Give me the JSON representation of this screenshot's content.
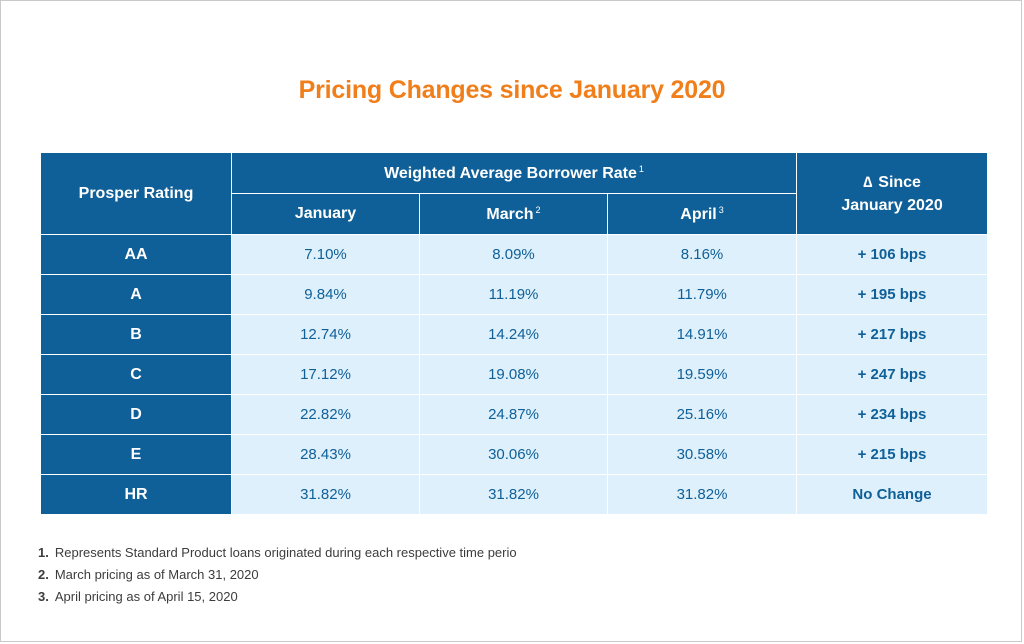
{
  "title": "Pricing Changes since January 2020",
  "table": {
    "rating_header": "Prosper Rating",
    "group_header": "Weighted Average Borrower Rate",
    "group_footnote": "1",
    "months": [
      {
        "label": "January",
        "footnote": ""
      },
      {
        "label": "March",
        "footnote": "2"
      },
      {
        "label": "April",
        "footnote": "3"
      }
    ],
    "delta_symbol": "∆",
    "delta_header_line1": "Since",
    "delta_header_line2": "January 2020",
    "rows": [
      {
        "rating": "AA",
        "january": "7.10%",
        "march": "8.09%",
        "april": "8.16%",
        "delta": "+ 106 bps"
      },
      {
        "rating": "A",
        "january": "9.84%",
        "march": "11.19%",
        "april": "11.79%",
        "delta": "+ 195 bps"
      },
      {
        "rating": "B",
        "january": "12.74%",
        "march": "14.24%",
        "april": "14.91%",
        "delta": "+ 217 bps"
      },
      {
        "rating": "C",
        "january": "17.12%",
        "march": "19.08%",
        "april": "19.59%",
        "delta": "+ 247 bps"
      },
      {
        "rating": "D",
        "january": "22.82%",
        "march": "24.87%",
        "april": "25.16%",
        "delta": "+ 234 bps"
      },
      {
        "rating": "E",
        "january": "28.43%",
        "march": "30.06%",
        "april": "30.58%",
        "delta": "+ 215 bps"
      },
      {
        "rating": "HR",
        "january": "31.82%",
        "march": "31.82%",
        "april": "31.82%",
        "delta": "No Change"
      }
    ]
  },
  "footnotes": [
    {
      "num": "1.",
      "text": "Represents Standard Product loans originated during each respective time perio"
    },
    {
      "num": "2.",
      "text": "March pricing as of March 31, 2020"
    },
    {
      "num": "3.",
      "text": "April pricing as of April 15, 2020"
    }
  ],
  "colors": {
    "title": "#f07e1a",
    "header_bg": "#0f5f98",
    "cell_bg": "#ddf0fb",
    "cell_text": "#0f5f98"
  }
}
